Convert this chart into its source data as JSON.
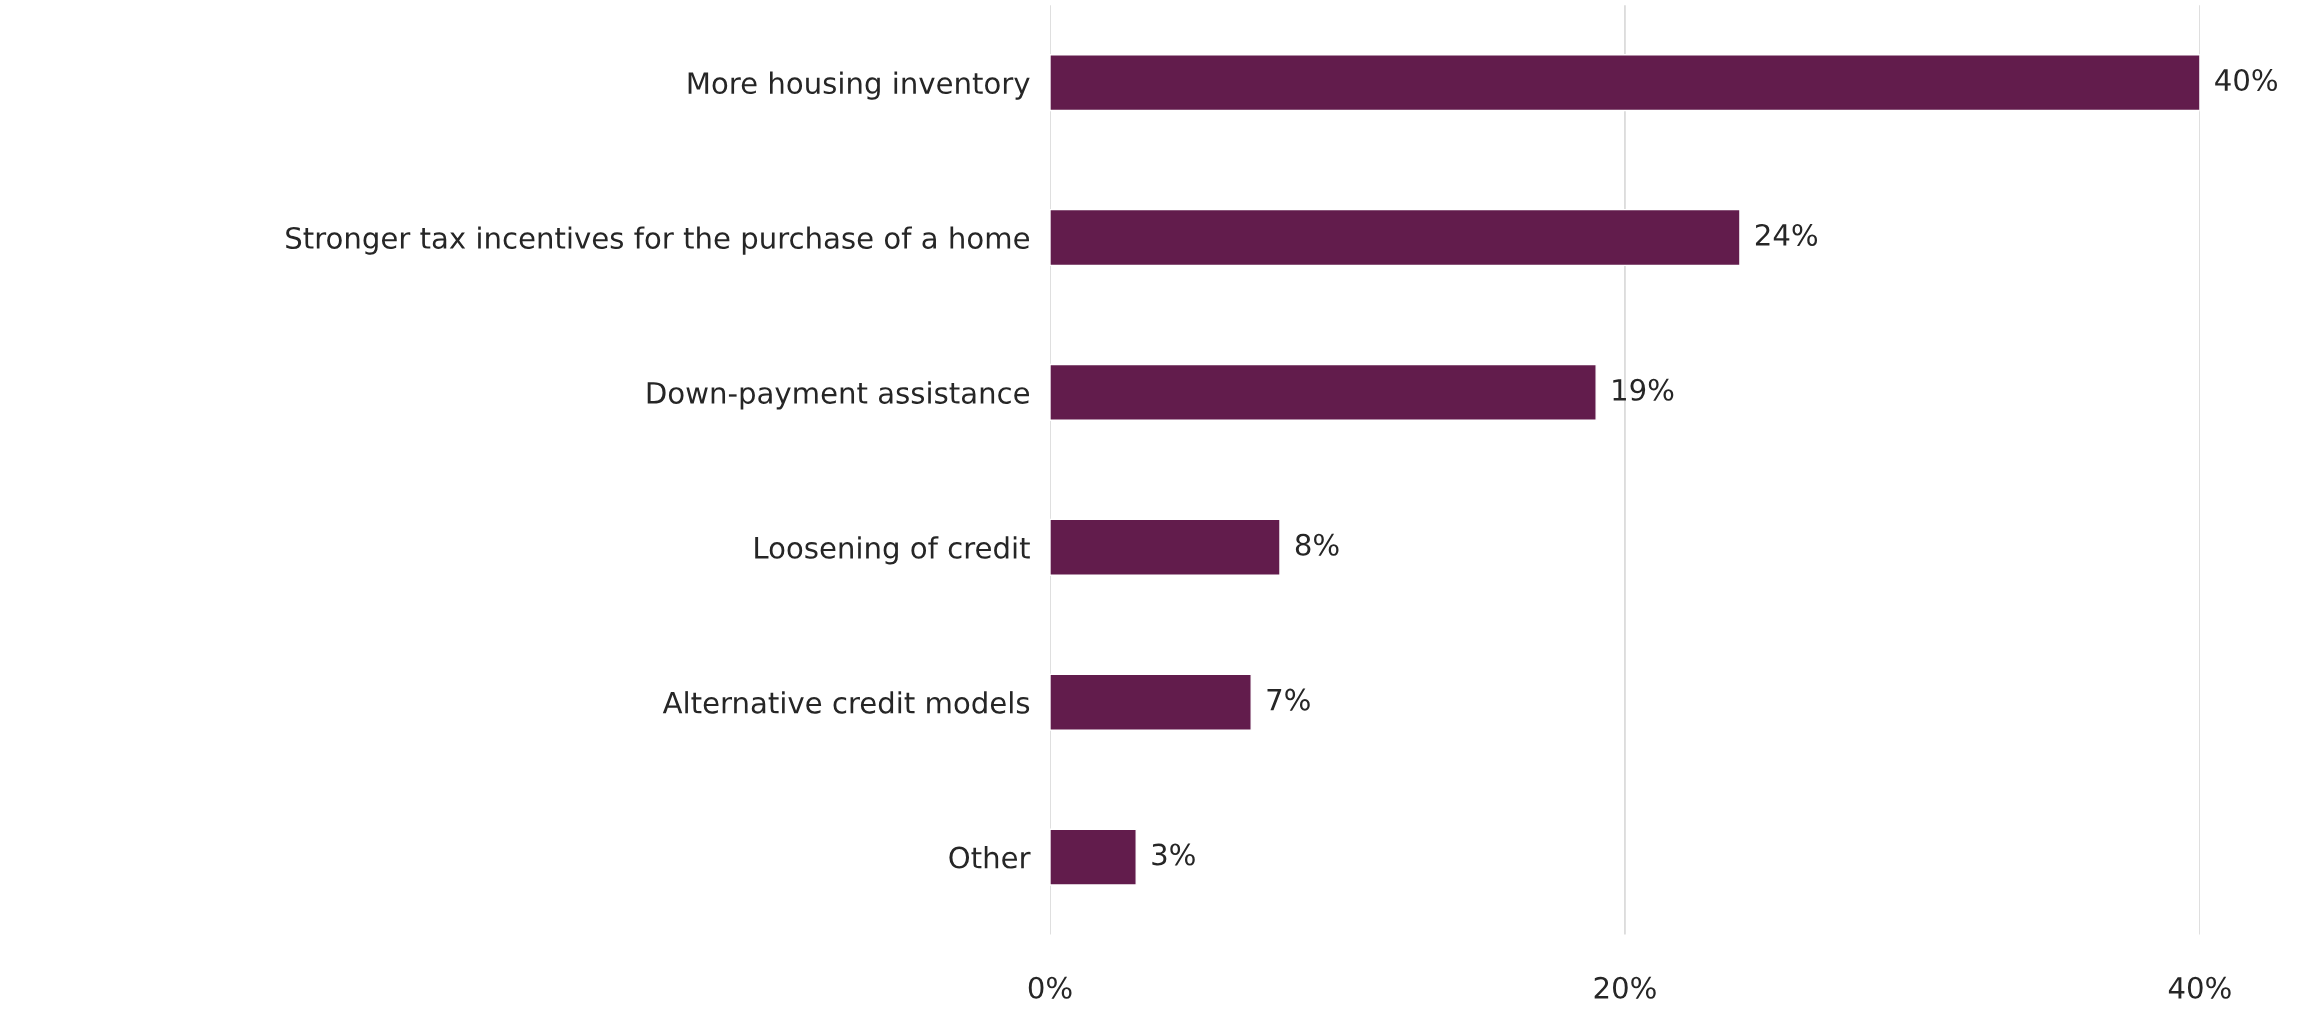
{
  "chart_data": {
    "type": "bar",
    "orientation": "horizontal",
    "categories": [
      "More housing inventory",
      "Stronger tax incentives for the purchase of a home",
      "Down-payment assistance",
      "Loosening of credit",
      "Alternative credit models",
      "Other"
    ],
    "values": [
      40,
      24,
      19,
      8,
      7,
      3
    ],
    "value_labels": [
      "40%",
      "24%",
      "19%",
      "8%",
      "7%",
      "3%"
    ],
    "color": "#621c4c",
    "xlim": [
      0,
      40
    ],
    "xticks": [
      {
        "value": 0,
        "label": "0%"
      },
      {
        "value": 20,
        "label": "20%"
      },
      {
        "value": 40,
        "label": "40%"
      }
    ],
    "grid": "x",
    "legend": false
  }
}
